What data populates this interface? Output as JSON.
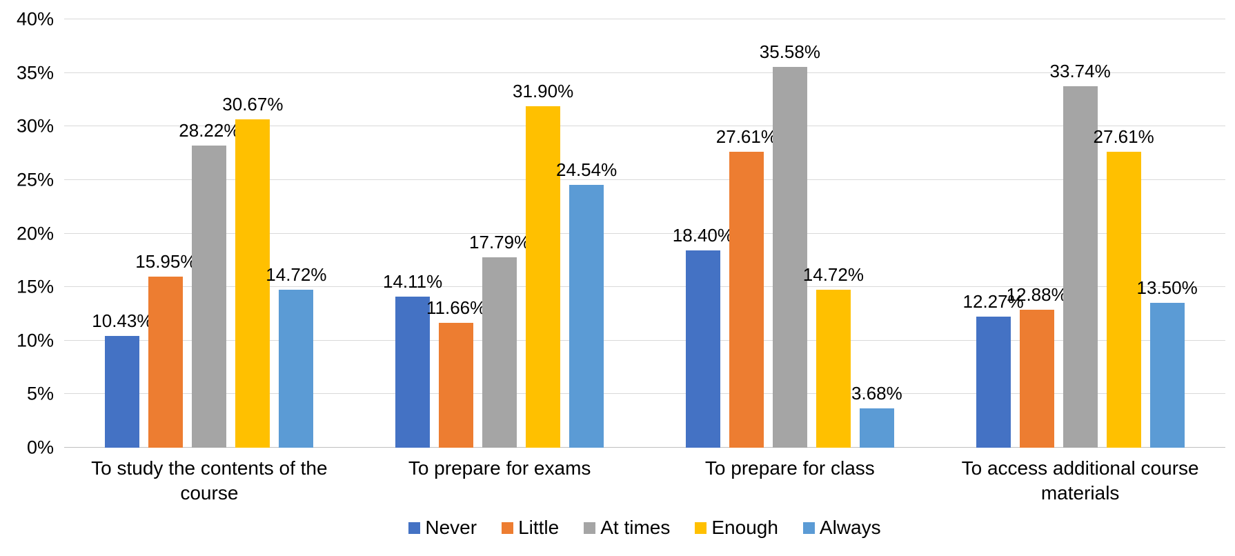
{
  "chart_data": {
    "type": "bar",
    "title": "",
    "categories": [
      "To study the contents of the course",
      "To prepare for exams",
      "To prepare for class",
      "To access additional course materials"
    ],
    "series": [
      {
        "name": "Never",
        "color": "#4472C4",
        "values": [
          10.43,
          14.11,
          18.4,
          12.27
        ],
        "labels": [
          "10.43%",
          "14.11%",
          "18.40%",
          "12.27%"
        ]
      },
      {
        "name": "Little",
        "color": "#ED7D31",
        "values": [
          15.95,
          11.66,
          27.61,
          12.88
        ],
        "labels": [
          "15.95%",
          "11.66%",
          "27.61%",
          "12.88%"
        ]
      },
      {
        "name": "At times",
        "color": "#A5A5A5",
        "values": [
          28.22,
          17.79,
          35.58,
          33.74
        ],
        "labels": [
          "28.22%",
          "17.79%",
          "35.58%",
          "33.74%"
        ]
      },
      {
        "name": "Enough",
        "color": "#FFC000",
        "values": [
          30.67,
          31.9,
          14.72,
          27.61
        ],
        "labels": [
          "30.67%",
          "31.90%",
          "14.72%",
          "27.61%"
        ]
      },
      {
        "name": "Always",
        "color": "#5B9BD5",
        "values": [
          14.72,
          24.54,
          3.68,
          13.5
        ],
        "labels": [
          "14.72%",
          "24.54%",
          "3.68%",
          "13.50%"
        ]
      }
    ],
    "y_axis": {
      "tick_labels": [
        "0%",
        "5%",
        "10%",
        "15%",
        "20%",
        "25%",
        "30%",
        "35%",
        "40%"
      ],
      "tick_values": [
        0,
        5,
        10,
        15,
        20,
        25,
        30,
        35,
        40
      ],
      "min": 0,
      "max": 40
    },
    "xlabel": "",
    "ylabel": "",
    "grid": true,
    "legend_position": "bottom",
    "legend_entries": [
      "Never",
      "Little",
      "At times",
      "Enough",
      "Always"
    ]
  },
  "colors": {
    "background": "#FFFFFF",
    "gridline": "#D9D9D9",
    "axis_line": "#BFBFBF",
    "text": "#000000"
  }
}
